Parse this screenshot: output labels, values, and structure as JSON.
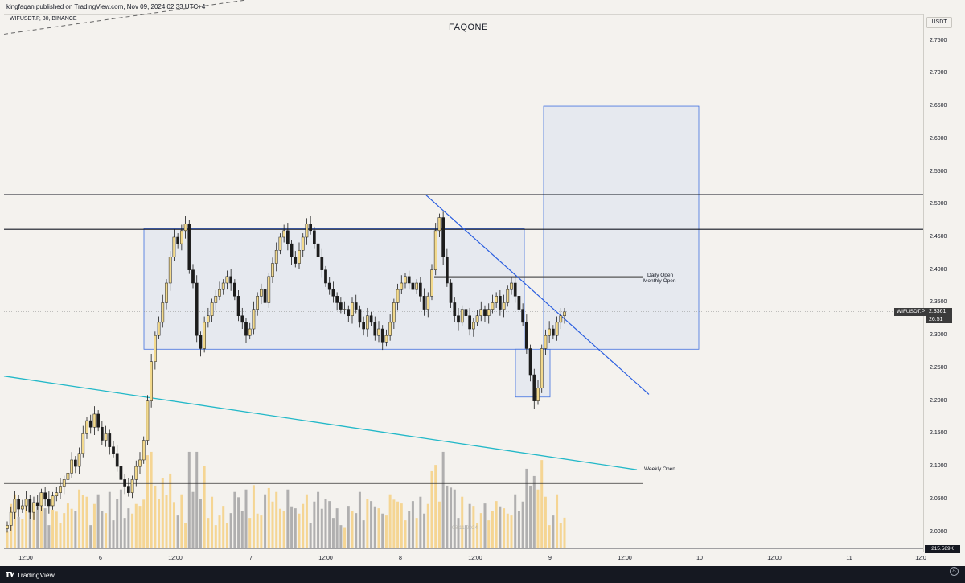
{
  "header": {
    "publisher_line": "kingfaqan published on TradingView.com, Nov 09, 2024 02:33 UTC+4"
  },
  "symbol": {
    "line": "WIFUSDT.P, 30, BINANCE"
  },
  "watermark": "FAQONE",
  "price_scale": {
    "currency": "USDT",
    "ticks": [
      "2.7500",
      "2.7000",
      "2.6500",
      "2.6000",
      "2.5500",
      "2.5000",
      "2.4500",
      "2.4000",
      "2.3500",
      "2.3000",
      "2.2500",
      "2.2000",
      "2.1500",
      "2.1000",
      "2.0500",
      "2.0000"
    ]
  },
  "time_scale": {
    "ticks": [
      "12:00",
      "6",
      "12:00",
      "7",
      "12:00",
      "8",
      "12:00",
      "9",
      "12:00",
      "10",
      "12:00",
      "11",
      "12:0"
    ]
  },
  "last_price": {
    "symbol": "WIFUSDT.P",
    "value": "2.3361",
    "countdown": "26:51"
  },
  "volume_value": "215.589K",
  "annotations": {
    "daily_open": "Daily Open",
    "monthly_open": "Monthly Open",
    "weekly_open": "Weekly Open",
    "volume_date_watermark": "08/11/2024"
  },
  "footer": {
    "brand": "TradingView"
  },
  "colors": {
    "background": "#f4f2ee",
    "bull_candle": "#f2d98c",
    "bear_candle": "#1c1c1c",
    "volume_up": "#f5d083",
    "volume_down": "#a3a3a3",
    "range_box_fill": "#e3e8ef",
    "range_box_border": "#3f6fe0",
    "trendline": "#2a5ee0",
    "support_line": "#22b8c8",
    "resistance_line": "#131722",
    "footer_bg": "#151821"
  },
  "chart_data": {
    "type": "candlestick",
    "interval": "30",
    "ylim": [
      1.97,
      2.79
    ],
    "levels": {
      "resistance_top": 2.515,
      "resistance_2": 2.462,
      "horizontal_mid": 2.383,
      "daily_open": 2.39,
      "monthly_open": 2.388,
      "weekly_open": 2.074,
      "last_price": 2.3361
    },
    "range_box": {
      "price_top": 2.463,
      "price_bottom": 2.279
    },
    "small_box": {
      "price_top": 2.279,
      "price_bottom": 2.206
    },
    "target_box": {
      "price_top": 2.65,
      "price_bottom": 2.279
    },
    "descending_trendline": {
      "start_price": 2.514,
      "end_price": 2.21
    },
    "support_trendline": {
      "start_price": 2.238,
      "end_price": 2.095
    },
    "dashed_trendline": {
      "start_price": 2.76,
      "end_price": 2.915
    },
    "closes": [
      2.01,
      2.03,
      2.05,
      2.035,
      2.04,
      2.05,
      2.03,
      2.045,
      2.04,
      2.06,
      2.05,
      2.04,
      2.055,
      2.06,
      2.07,
      2.08,
      2.09,
      2.11,
      2.1,
      2.12,
      2.15,
      2.17,
      2.16,
      2.18,
      2.16,
      2.14,
      2.15,
      2.13,
      2.12,
      2.1,
      2.08,
      2.07,
      2.06,
      2.08,
      2.1,
      2.11,
      2.14,
      2.2,
      2.26,
      2.3,
      2.32,
      2.35,
      2.38,
      2.42,
      2.45,
      2.44,
      2.46,
      2.47,
      2.4,
      2.38,
      2.3,
      2.28,
      2.32,
      2.33,
      2.35,
      2.36,
      2.37,
      2.38,
      2.39,
      2.38,
      2.36,
      2.33,
      2.32,
      2.3,
      2.31,
      2.34,
      2.36,
      2.37,
      2.35,
      2.39,
      2.41,
      2.43,
      2.45,
      2.46,
      2.44,
      2.42,
      2.41,
      2.43,
      2.45,
      2.47,
      2.46,
      2.44,
      2.42,
      2.4,
      2.38,
      2.37,
      2.36,
      2.35,
      2.34,
      2.34,
      2.33,
      2.35,
      2.34,
      2.32,
      2.31,
      2.33,
      2.32,
      2.3,
      2.31,
      2.29,
      2.3,
      2.32,
      2.35,
      2.37,
      2.38,
      2.39,
      2.38,
      2.37,
      2.38,
      2.36,
      2.34,
      2.36,
      2.4,
      2.46,
      2.48,
      2.42,
      2.38,
      2.35,
      2.33,
      2.32,
      2.34,
      2.33,
      2.31,
      2.32,
      2.33,
      2.34,
      2.33,
      2.34,
      2.35,
      2.36,
      2.34,
      2.35,
      2.37,
      2.38,
      2.36,
      2.34,
      2.32,
      2.28,
      2.24,
      2.2,
      2.22,
      2.28,
      2.3,
      2.31,
      2.3,
      2.32,
      2.33,
      2.336
    ],
    "volume_ylim": [
      0,
      1.0
    ]
  }
}
